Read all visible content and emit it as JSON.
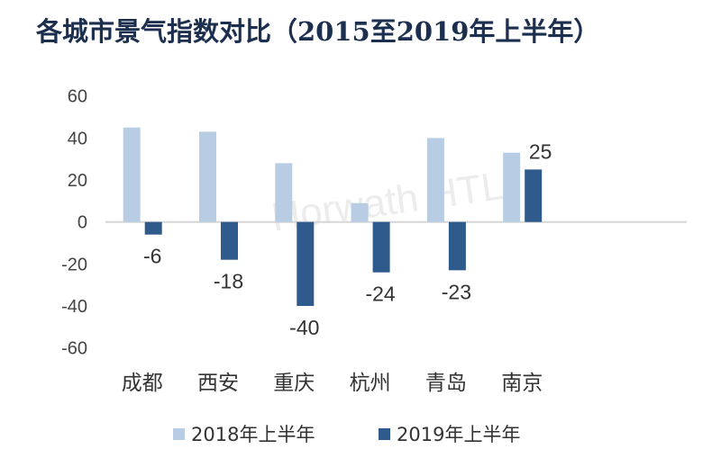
{
  "chart_data": {
    "type": "bar",
    "title": "各城市景气指数对比（2015至2019年上半年）",
    "categories": [
      "成都",
      "西安",
      "重庆",
      "杭州",
      "青岛",
      "南京"
    ],
    "series": [
      {
        "name": "2018年上半年",
        "values": [
          45,
          43,
          28,
          9,
          40,
          33
        ],
        "color": "#b8cde3",
        "labels": [
          null,
          null,
          null,
          null,
          null,
          null
        ]
      },
      {
        "name": "2019年上半年",
        "values": [
          -6,
          -18,
          -40,
          -24,
          -23,
          25
        ],
        "color": "#2f5a8c",
        "labels": [
          "-6",
          "-18",
          "-40",
          "-24",
          "-23",
          "25"
        ]
      }
    ],
    "ylim": [
      -60,
      60
    ],
    "yticks": [
      60,
      40,
      20,
      0,
      -20,
      -40,
      -60
    ],
    "grid": false,
    "legend": "bottom",
    "watermark": "Horwath HTL"
  }
}
